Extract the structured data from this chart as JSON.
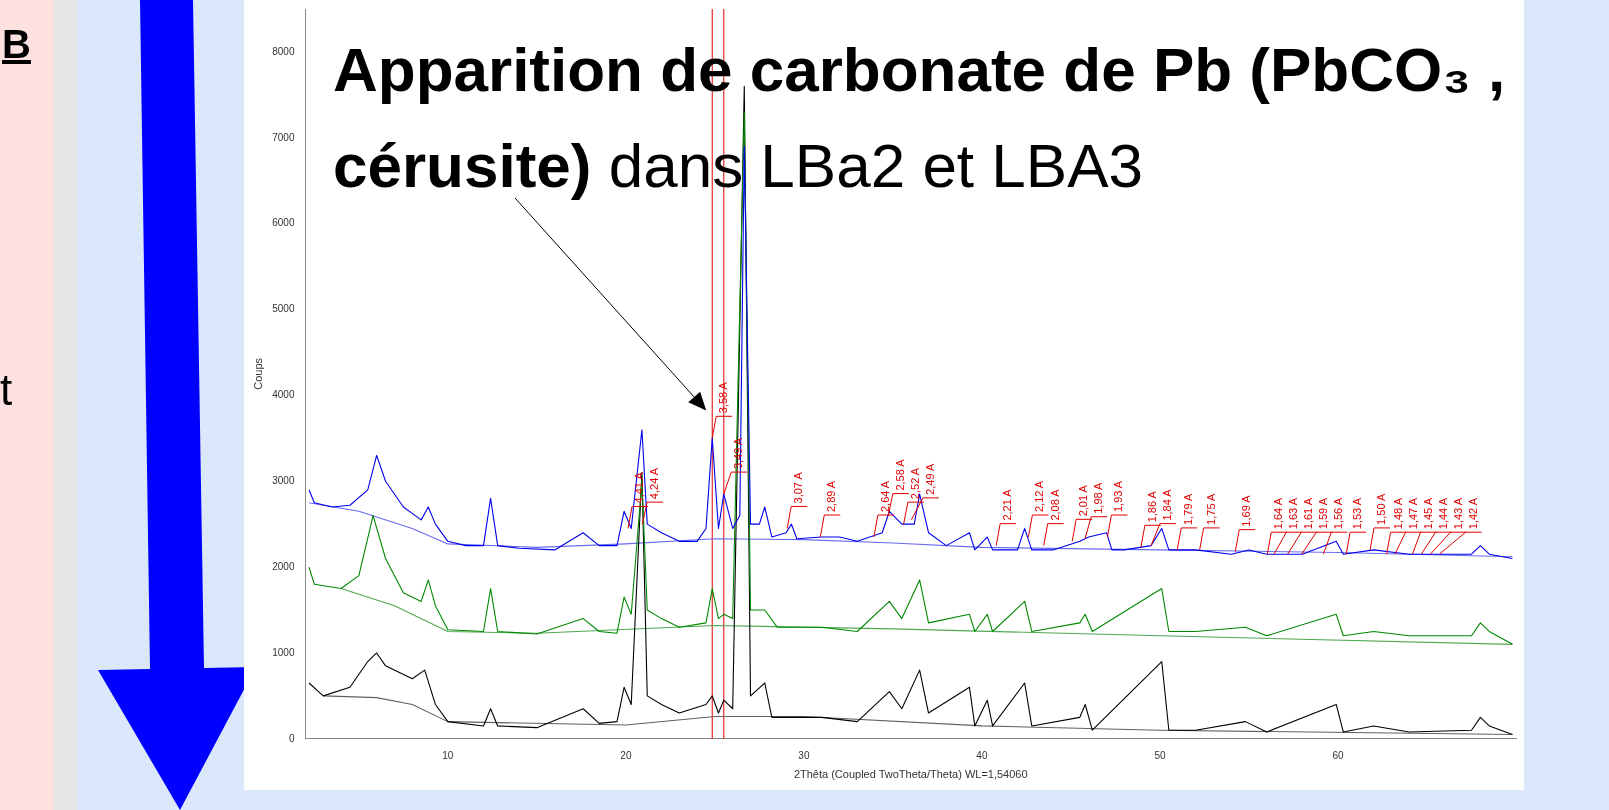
{
  "chart_data": {
    "type": "line",
    "xlabel": "2Thêta (Coupled TwoTheta/Theta) WL=1,54060",
    "ylabel": "Coups",
    "xlim": [
      2,
      70
    ],
    "ylim": [
      0,
      8500
    ],
    "xticks": [
      10,
      20,
      30,
      40,
      50,
      60
    ],
    "yticks": [
      0,
      1000,
      2000,
      3000,
      4000,
      5000,
      6000,
      7000,
      8000
    ],
    "grid": false,
    "legend": false,
    "marker": "none",
    "line_style": "solid",
    "series": [
      {
        "color": "#0000ee",
        "x": [
          2.2,
          2.5,
          3.5,
          4.5,
          5.5,
          6.0,
          6.5,
          7.5,
          8.5,
          8.9,
          9.3,
          10,
          11,
          12,
          12.4,
          12.8,
          14,
          16,
          17.6,
          18.5,
          19.5,
          19.9,
          20.3,
          20.9,
          21.2,
          22,
          23,
          24,
          24.5,
          24.85,
          25.2,
          25.5,
          26,
          26.4,
          26.65,
          27,
          27.5,
          27.8,
          28.2,
          29,
          29.3,
          29.6,
          31,
          32,
          33,
          34.4,
          34.8,
          35.5,
          36.2,
          36.5,
          37,
          38,
          39.3,
          39.6,
          40.3,
          40.6,
          42,
          42.4,
          42.8,
          44,
          45.5,
          46,
          47,
          47.3,
          48,
          49.5,
          50.1,
          50.5,
          52,
          54,
          55,
          56,
          58,
          59.9,
          60.3,
          62,
          64,
          66,
          67.5,
          68,
          68.5,
          69.8
        ],
        "values": [
          2900,
          2750,
          2700,
          2720,
          2900,
          3300,
          3000,
          2700,
          2550,
          2700,
          2500,
          2300,
          2250,
          2250,
          2800,
          2250,
          2220,
          2200,
          2400,
          2250,
          2250,
          2650,
          2450,
          3600,
          2500,
          2400,
          2300,
          2300,
          2450,
          3500,
          2450,
          2850,
          2450,
          2600,
          6900,
          2500,
          2500,
          2700,
          2350,
          2400,
          2500,
          2330,
          2350,
          2350,
          2300,
          2400,
          2650,
          2500,
          2500,
          2850,
          2400,
          2250,
          2400,
          2200,
          2350,
          2200,
          2200,
          2450,
          2200,
          2200,
          2300,
          2350,
          2400,
          2200,
          2200,
          2250,
          2450,
          2200,
          2200,
          2150,
          2200,
          2150,
          2150,
          2300,
          2150,
          2200,
          2150,
          2150,
          2150,
          2250,
          2150,
          2100
        ]
      },
      {
        "color": "#008800",
        "x": [
          2.2,
          2.5,
          4,
          5,
          5.8,
          6.5,
          7.5,
          8.5,
          8.9,
          9.3,
          10,
          12,
          12.4,
          12.8,
          15,
          17.6,
          18.5,
          19.5,
          19.9,
          20.3,
          20.9,
          21.2,
          22,
          23,
          24.5,
          24.85,
          25.2,
          25.5,
          26,
          26.65,
          27,
          27.8,
          28.5,
          31,
          33,
          34.8,
          35.5,
          36.5,
          37,
          39.3,
          39.6,
          40.3,
          40.6,
          42.4,
          42.8,
          45.5,
          45.8,
          46.2,
          50.1,
          50.5,
          52,
          54.8,
          56,
          59.9,
          60.3,
          62,
          64,
          67.5,
          68,
          68.5,
          69.8
        ],
        "values": [
          2000,
          1800,
          1750,
          1900,
          2600,
          2100,
          1700,
          1600,
          1850,
          1550,
          1270,
          1250,
          1750,
          1250,
          1220,
          1400,
          1250,
          1230,
          1650,
          1450,
          3000,
          1500,
          1400,
          1300,
          1350,
          1750,
          1400,
          1450,
          1400,
          7300,
          1500,
          1500,
          1300,
          1300,
          1250,
          1600,
          1400,
          1850,
          1350,
          1450,
          1250,
          1450,
          1250,
          1600,
          1250,
          1350,
          1450,
          1250,
          1750,
          1250,
          1250,
          1300,
          1200,
          1450,
          1200,
          1250,
          1200,
          1200,
          1350,
          1250,
          1100
        ]
      },
      {
        "color": "#000000",
        "x": [
          2.2,
          3,
          4.5,
          5.5,
          6.0,
          6.5,
          8,
          8.7,
          9.3,
          10,
          12,
          12.4,
          12.8,
          15,
          17.6,
          18.5,
          19.5,
          19.9,
          20.3,
          20.9,
          21.2,
          22,
          23,
          24.5,
          24.85,
          25.2,
          25.5,
          26,
          26.65,
          27,
          27.8,
          28.2,
          31,
          33,
          34.8,
          35.5,
          36.5,
          37,
          39.3,
          39.6,
          40.3,
          40.6,
          42.4,
          42.8,
          45.5,
          45.8,
          46.2,
          50.1,
          50.5,
          52,
          54.8,
          56,
          59.9,
          60.3,
          62,
          64,
          67.5,
          68,
          68.5,
          69.8
        ],
        "values": [
          650,
          500,
          600,
          900,
          1000,
          850,
          700,
          800,
          400,
          200,
          150,
          350,
          150,
          130,
          350,
          180,
          200,
          600,
          400,
          3100,
          500,
          400,
          300,
          400,
          500,
          300,
          450,
          350,
          7600,
          500,
          650,
          250,
          250,
          200,
          550,
          350,
          800,
          300,
          600,
          150,
          450,
          150,
          650,
          150,
          250,
          400,
          100,
          900,
          100,
          100,
          200,
          80,
          400,
          80,
          150,
          80,
          100,
          250,
          150,
          50
        ]
      },
      {
        "color": "#6a6af0",
        "x": [
          2.2,
          5,
          8,
          10,
          15,
          20,
          25,
          30,
          35,
          40,
          50,
          60,
          69.8
        ],
        "values": [
          2750,
          2650,
          2450,
          2270,
          2230,
          2270,
          2330,
          2320,
          2280,
          2230,
          2200,
          2170,
          2120
        ]
      },
      {
        "color": "#50a850",
        "x": [
          4,
          7,
          10,
          15,
          25,
          35,
          50,
          69.8
        ],
        "values": [
          1750,
          1550,
          1250,
          1230,
          1320,
          1280,
          1200,
          1100
        ]
      },
      {
        "color": "#606060",
        "x": [
          3,
          6,
          8,
          10,
          20,
          25,
          30,
          40,
          50,
          69.8
        ],
        "values": [
          500,
          480,
          400,
          200,
          160,
          260,
          260,
          150,
          100,
          50
        ]
      }
    ],
    "ref_lines": [
      {
        "axis": "x",
        "value": 24.85,
        "color": "#e00000"
      },
      {
        "axis": "x",
        "value": 25.5,
        "color": "#e00000"
      }
    ],
    "annotations": [
      "Apparition de carbonate de Pb (PbCO₃ , cérusite)",
      "dans LBa2 et LBA3",
      "B",
      "t",
      {
        "text": "4,41 A",
        "x": 20.12,
        "y": 2450
      },
      {
        "text": "4,24 A",
        "x": 20.93,
        "y": 2500
      },
      {
        "text": "3,58 A",
        "x": 24.85,
        "y": 3500
      },
      {
        "text": "3,49 A",
        "x": 25.5,
        "y": 2850
      },
      {
        "text": "3,07 A",
        "x": 29.06,
        "y": 2450
      },
      {
        "text": "2,89 A",
        "x": 30.92,
        "y": 2350
      },
      {
        "text": "2,64 A",
        "x": 33.93,
        "y": 2350
      },
      {
        "text": "2,58 A",
        "x": 34.74,
        "y": 2600
      },
      {
        "text": "2,52 A",
        "x": 35.6,
        "y": 2500
      },
      {
        "text": "2,49 A",
        "x": 36.04,
        "y": 2550
      },
      {
        "text": "2,21 A",
        "x": 40.8,
        "y": 2250
      },
      {
        "text": "2,12 A",
        "x": 42.61,
        "y": 2350
      },
      {
        "text": "2,08 A",
        "x": 43.47,
        "y": 2250
      },
      {
        "text": "2,01 A",
        "x": 45.07,
        "y": 2300
      },
      {
        "text": "1,98 A",
        "x": 45.79,
        "y": 2330
      },
      {
        "text": "1,93 A",
        "x": 47.05,
        "y": 2350
      },
      {
        "text": "1,86 A",
        "x": 48.93,
        "y": 2230
      },
      {
        "text": "1,84 A",
        "x": 49.5,
        "y": 2250
      },
      {
        "text": "1,79 A",
        "x": 50.97,
        "y": 2200
      },
      {
        "text": "1,75 A",
        "x": 52.23,
        "y": 2200
      },
      {
        "text": "1,69 A",
        "x": 54.23,
        "y": 2180
      },
      {
        "text": "1,64 A",
        "x": 56.03,
        "y": 2150
      },
      {
        "text": "1,63 A",
        "x": 56.41,
        "y": 2150
      },
      {
        "text": "1,61 A",
        "x": 57.17,
        "y": 2150
      },
      {
        "text": "1,59 A",
        "x": 57.96,
        "y": 2150
      },
      {
        "text": "1,56 A",
        "x": 59.18,
        "y": 2150
      },
      {
        "text": "1,53 A",
        "x": 60.46,
        "y": 2150
      },
      {
        "text": "1,50 A",
        "x": 61.8,
        "y": 2200
      },
      {
        "text": "1,48 A",
        "x": 62.73,
        "y": 2150
      },
      {
        "text": "1,47 A",
        "x": 63.2,
        "y": 2150
      },
      {
        "text": "1,45 A",
        "x": 64.18,
        "y": 2150
      },
      {
        "text": "1,44 A",
        "x": 64.68,
        "y": 2150
      },
      {
        "text": "1,43 A",
        "x": 65.19,
        "y": 2150
      },
      {
        "text": "1,42 A",
        "x": 65.7,
        "y": 2150
      }
    ]
  }
}
